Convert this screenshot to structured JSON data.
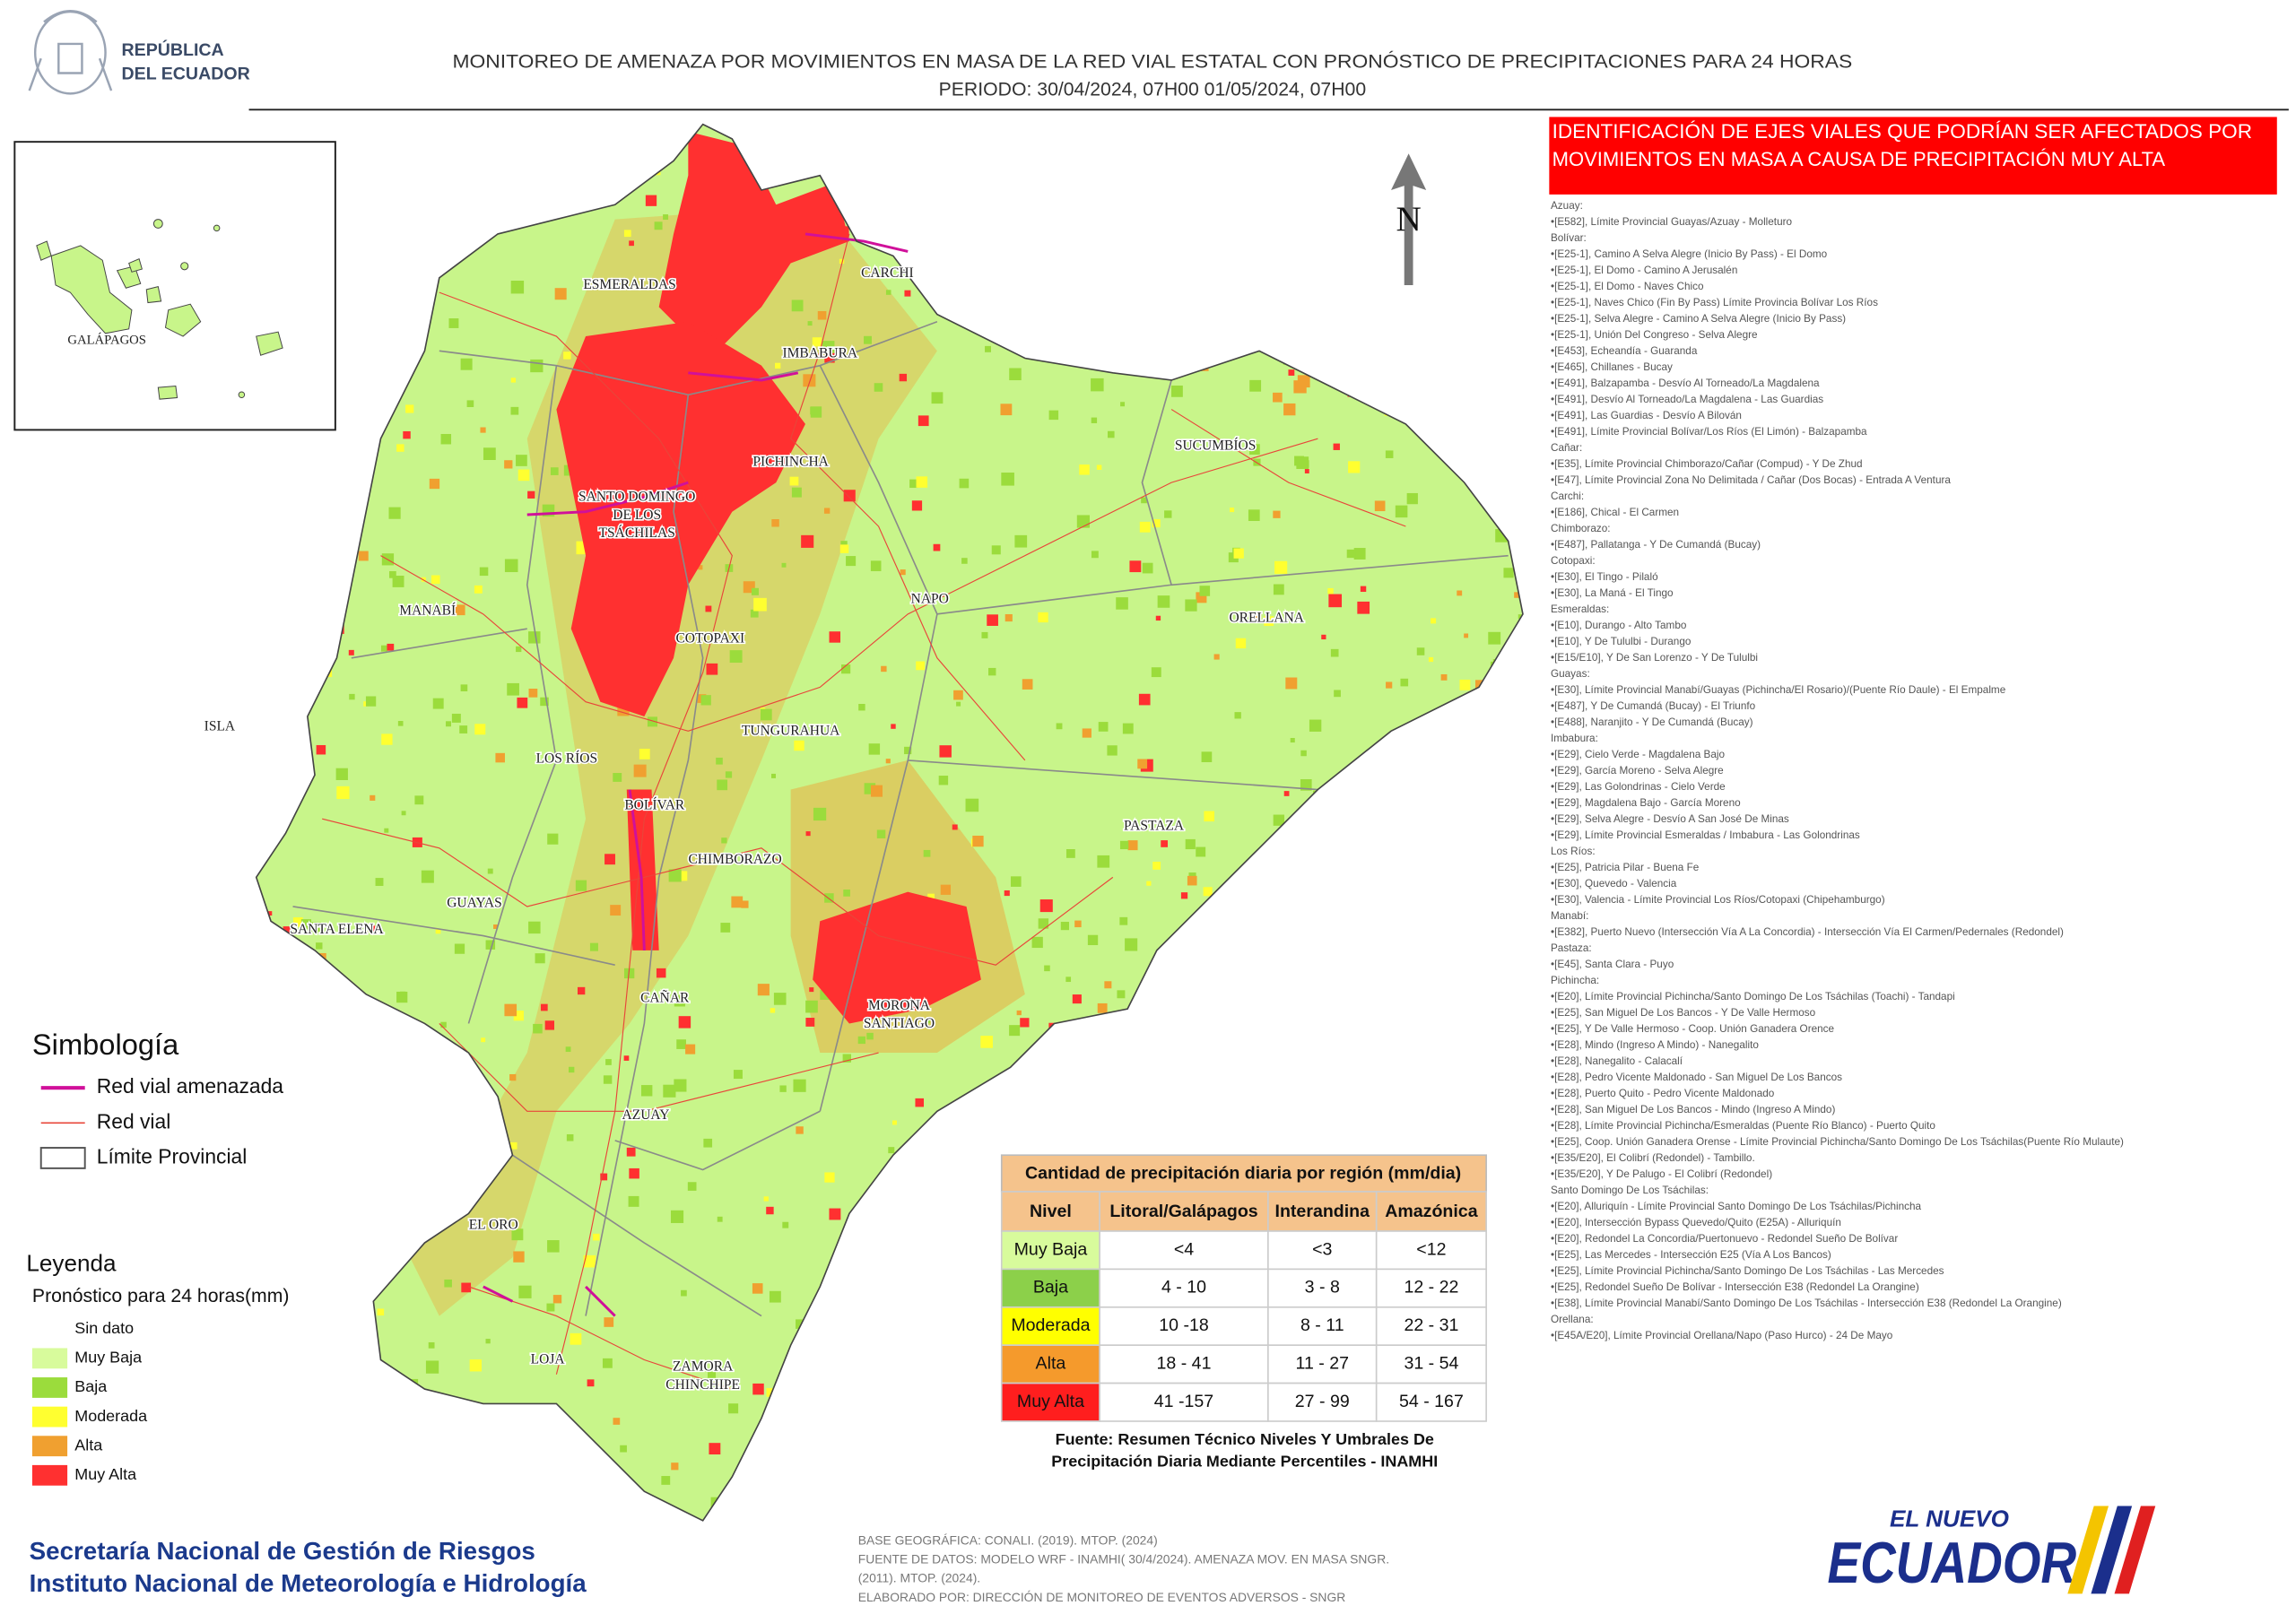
{
  "header": {
    "country": [
      "REPÚBLICA",
      "DEL ECUADOR"
    ],
    "title": [
      "MONITOREO DE AMENAZA POR MOVIMIENTOS EN MASA DE LA RED VIAL  ESTATAL  CON PRONÓSTICO  DE  PRECIPITACIONES PARA 24 HORAS",
      "PERIODO: 30/04/2024, 07H00 01/05/2024, 07H00"
    ]
  },
  "inset": {
    "label": "GALÁPAGOS"
  },
  "map": {
    "north": "N",
    "regions": [
      [
        "ESMERALDAS"
      ],
      [
        "CARCHI"
      ],
      [
        "IMBABURA"
      ],
      [
        "SUCUMBÍOS"
      ],
      [
        "PICHINCHA"
      ],
      [
        "SANTO DOMINGO",
        "DE LOS",
        "TSÁCHILAS"
      ],
      [
        "NAPO"
      ],
      [
        "ORELLANA"
      ],
      [
        "MANABÍ"
      ],
      [
        "COTOPAXI"
      ],
      [
        "ISLA"
      ],
      [
        "TUNGURAHUA"
      ],
      [
        "LOS RÍOS"
      ],
      [
        "BOLÍVAR"
      ],
      [
        "PASTAZA"
      ],
      [
        "CHIMBORAZO"
      ],
      [
        "SANTA ELENA"
      ],
      [
        "GUAYAS"
      ],
      [
        "CAÑAR"
      ],
      [
        "MORONA",
        "SANTIAGO"
      ],
      [
        "AZUAY"
      ],
      [
        "EL ORO"
      ],
      [
        "LOJA"
      ],
      [
        "ZAMORA",
        "CHINCHIPE"
      ]
    ]
  },
  "alert_panel": {
    "title": [
      "IDENTIFICACIÓN DE EJES VIALES QUE PODRÍAN SER AFECTADOS POR",
      "MOVIMIENTOS EN MASA A CAUSA DE PRECIPITACIÓN MUY ALTA"
    ],
    "items": [
      "Azuay:",
      "•[E582], Límite Provincial Guayas/Azuay - Molleturo",
      "Bolívar:",
      "•[E25-1], Camino A Selva Alegre (Inicio By Pass) -  El Domo",
      "•[E25-1], El Domo - Camino A Jerusalén",
      "•[E25-1], El Domo - Naves Chico",
      "•[E25-1], Naves Chico (Fin By Pass) Límite Provincia Bolívar Los Ríos",
      "•[E25-1], Selva Alegre - Camino A Selva Alegre (Inicio By Pass)",
      "•[E25-1], Unión Del Congreso - Selva  Alegre",
      "•[E453], Echeandía - Guaranda",
      "•[E465], Chillanes - Bucay",
      "•[E491], Balzapamba - Desvío Al Torneado/La Magdalena",
      "•[E491], Desvío Al Torneado/La Magdalena - Las Guardias",
      "•[E491], Las Guardias - Desvío A Bilován",
      "•[E491], Límite Provincial Bolívar/Los Ríos (El Limón) - Balzapamba",
      "Cañar:",
      "•[E35], Límite Provincial Chimborazo/Cañar (Compud) - Y De Zhud",
      "•[E47], Límite Provincial Zona No Delimitada / Cañar (Dos Bocas) - Entrada  A Ventura",
      "Carchi:",
      "•[E186], Chical - El Carmen",
      "Chimborazo:",
      "•[E487], Pallatanga - Y De Cumandá (Bucay)",
      "Cotopaxi:",
      "•[E30], El Tingo - Pilaló",
      "•[E30], La Maná - El Tingo",
      "Esmeraldas:",
      "•[E10], Durango - Alto Tambo",
      "•[E10], Y De Tululbi - Durango",
      "•[E15/E10], Y De San Lorenzo - Y De Tululbi",
      "Guayas:",
      "•[E30], Límite Provincial Manabí/Guayas (Pichincha/El Rosario)/(Puente Río Daule) - El Empalme",
      "•[E487], Y De Cumandá (Bucay) - El Triunfo",
      "•[E488], Naranjito - Y De Cumandá (Bucay)",
      "Imbabura:",
      "•[E29], Cielo Verde - Magdalena Bajo",
      "•[E29], García Moreno - Selva  Alegre",
      "•[E29], Las Golondrinas - Cielo Verde",
      "•[E29], Magdalena Bajo - García Moreno",
      "•[E29], Selva  Alegre - Desvío  A San José De Minas",
      "•[E29], Límite Provincial Esmeraldas / Imbabura - Las Golondrinas",
      "Los Ríos:",
      "•[E25], Patricia Pilar - Buena Fe",
      "•[E30], Quevedo - Valencia",
      "•[E30], Valencia - Límite Provincial Los Ríos/Cotopaxi (Chipehamburgo)",
      "Manabí:",
      "•[E382], Puerto Nuevo (Intersección Vía A La Concordia) - Intersección Vía El Carmen/Pedernales (Redondel)",
      "Pastaza:",
      "•[E45], Santa Clara - Puyo",
      "Pichincha:",
      "•[E20], Límite Provincial Pichincha/Santo Domingo De Los Tsáchilas (Toachi) - Tandapi",
      "•[E25], San Miguel De Los Bancos - Y De Valle Hermoso",
      "•[E25], Y De Valle Hermoso - Coop. Unión Ganadera Orence",
      "•[E28], Mindo (Ingreso A Mindo) - Nanegalito",
      "•[E28], Nanegalito - Calacalí",
      "•[E28], Pedro Vicente Maldonado - San Miguel De Los Bancos",
      "•[E28], Puerto Quito - Pedro Vicente Maldonado",
      "•[E28], San Miguel De Los Bancos - Mindo (Ingreso A Mindo)",
      "•[E28], Límite Provincial Pichincha/Esmeraldas (Puente Río Blanco) - Puerto Quito",
      "•[E25], Coop. Unión Ganadera Orense - Límite Provincial Pichincha/Santo Domingo De Los Tsáchilas(Puente Río Mulaute)",
      "•[E35/E20], El Colibrí (Redondel) - Tambillo.",
      "•[E35/E20], Y De Palugo - El Colibrí (Redondel)",
      "Santo Domingo De Los Tsáchilas:",
      "•[E20], Alluriquín - Límite Provincial Santo Domingo De Los Tsáchilas/Pichincha",
      "•[E20], Intersección Bypass Quevedo/Quito (E25A) - Alluriquín",
      "•[E20], Redondel La Concordia/Puertonuevo - Redondel Sueño De Bolívar",
      "•[E25], Las Mercedes - Intersección E25 (Vía A Los Bancos)",
      "•[E25], Límite Provincial Pichincha/Santo Domingo De Los Tsáchilas - Las Mercedes",
      "•[E25], Redondel Sueño De Bolívar - Intersección E38 (Redondel La Orangine)",
      "•[E38], Límite Provincial Manabí/Santo Domingo De Los Tsáchilas - Intersección E38 (Redondel La Orangine)",
      "Orellana:",
      "•[E45A/E20], Límite Provincial Orellana/Napo (Paso Hurco) - 24 De Mayo"
    ]
  },
  "symbology": {
    "title": "Simbología",
    "items": [
      {
        "label": "Red vial amenazada",
        "color": "#d0109a",
        "style": "line"
      },
      {
        "label": "Red vial",
        "color": "#e8463a",
        "style": "thin"
      },
      {
        "label": "Límite Provincial",
        "color": "#555555",
        "style": "box"
      }
    ]
  },
  "legend": {
    "title": "Leyenda",
    "subtitle": "Pronóstico para 24 horas(mm)",
    "items": [
      {
        "label": "Sin dato",
        "color": "#ffffff"
      },
      {
        "label": "Muy Baja",
        "color": "#d8fb9c"
      },
      {
        "label": "Baja",
        "color": "#9bdc3c"
      },
      {
        "label": "Moderada",
        "color": "#ffff30"
      },
      {
        "label": "Alta",
        "color": "#f0a030"
      },
      {
        "label": "Muy Alta",
        "color": "#ff3030"
      }
    ]
  },
  "table": {
    "title": "Cantidad de precipitación diaria por región (mm/dia)",
    "columns": [
      "Nivel",
      "Litoral/Galápagos",
      "Interandina",
      "Amazónica"
    ],
    "rows": [
      {
        "cells": [
          "Muy Baja",
          "<4",
          "<3",
          "<12"
        ],
        "color": "#d8fb9c"
      },
      {
        "cells": [
          "Baja",
          "4 - 10",
          "3 - 8",
          "12 - 22"
        ],
        "color": "#8cd04a"
      },
      {
        "cells": [
          "Moderada",
          "10 -18",
          "8 - 11",
          "22 - 31"
        ],
        "color": "#ffff00"
      },
      {
        "cells": [
          "Alta",
          "18 - 41",
          "11 - 27",
          "31 - 54"
        ],
        "color": "#f59a2c"
      },
      {
        "cells": [
          "Muy Alta",
          "41 -157",
          "27 - 99",
          "54 - 167"
        ],
        "color": "#ff1e1e"
      }
    ],
    "source": [
      "Fuente: Resumen Técnico Niveles Y Umbrales De",
      "Precipitación Diaria Mediante Percentiles - INAMHI"
    ]
  },
  "footer": {
    "institutions": [
      "Secretaría Nacional de Gestión de Riesgos",
      "Instituto Nacional de Meteorología e Hidrología"
    ],
    "credits": [
      "BASE GEOGRÁFICA: CONALI. (2019). MTOP. (2024)",
      "FUENTE DE DATOS: MODELO WRF - INAMHI( 30/4/2024).  AMENAZA MOV. EN MASA SNGR.",
      "(2011). MTOP. (2024).",
      "ELABORADO POR: DIRECCIÓN DE MONITOREO DE EVENTOS ADVERSOS - SNGR"
    ],
    "logo": {
      "top": "EL NUEVO",
      "main": "ECUADOR"
    }
  }
}
